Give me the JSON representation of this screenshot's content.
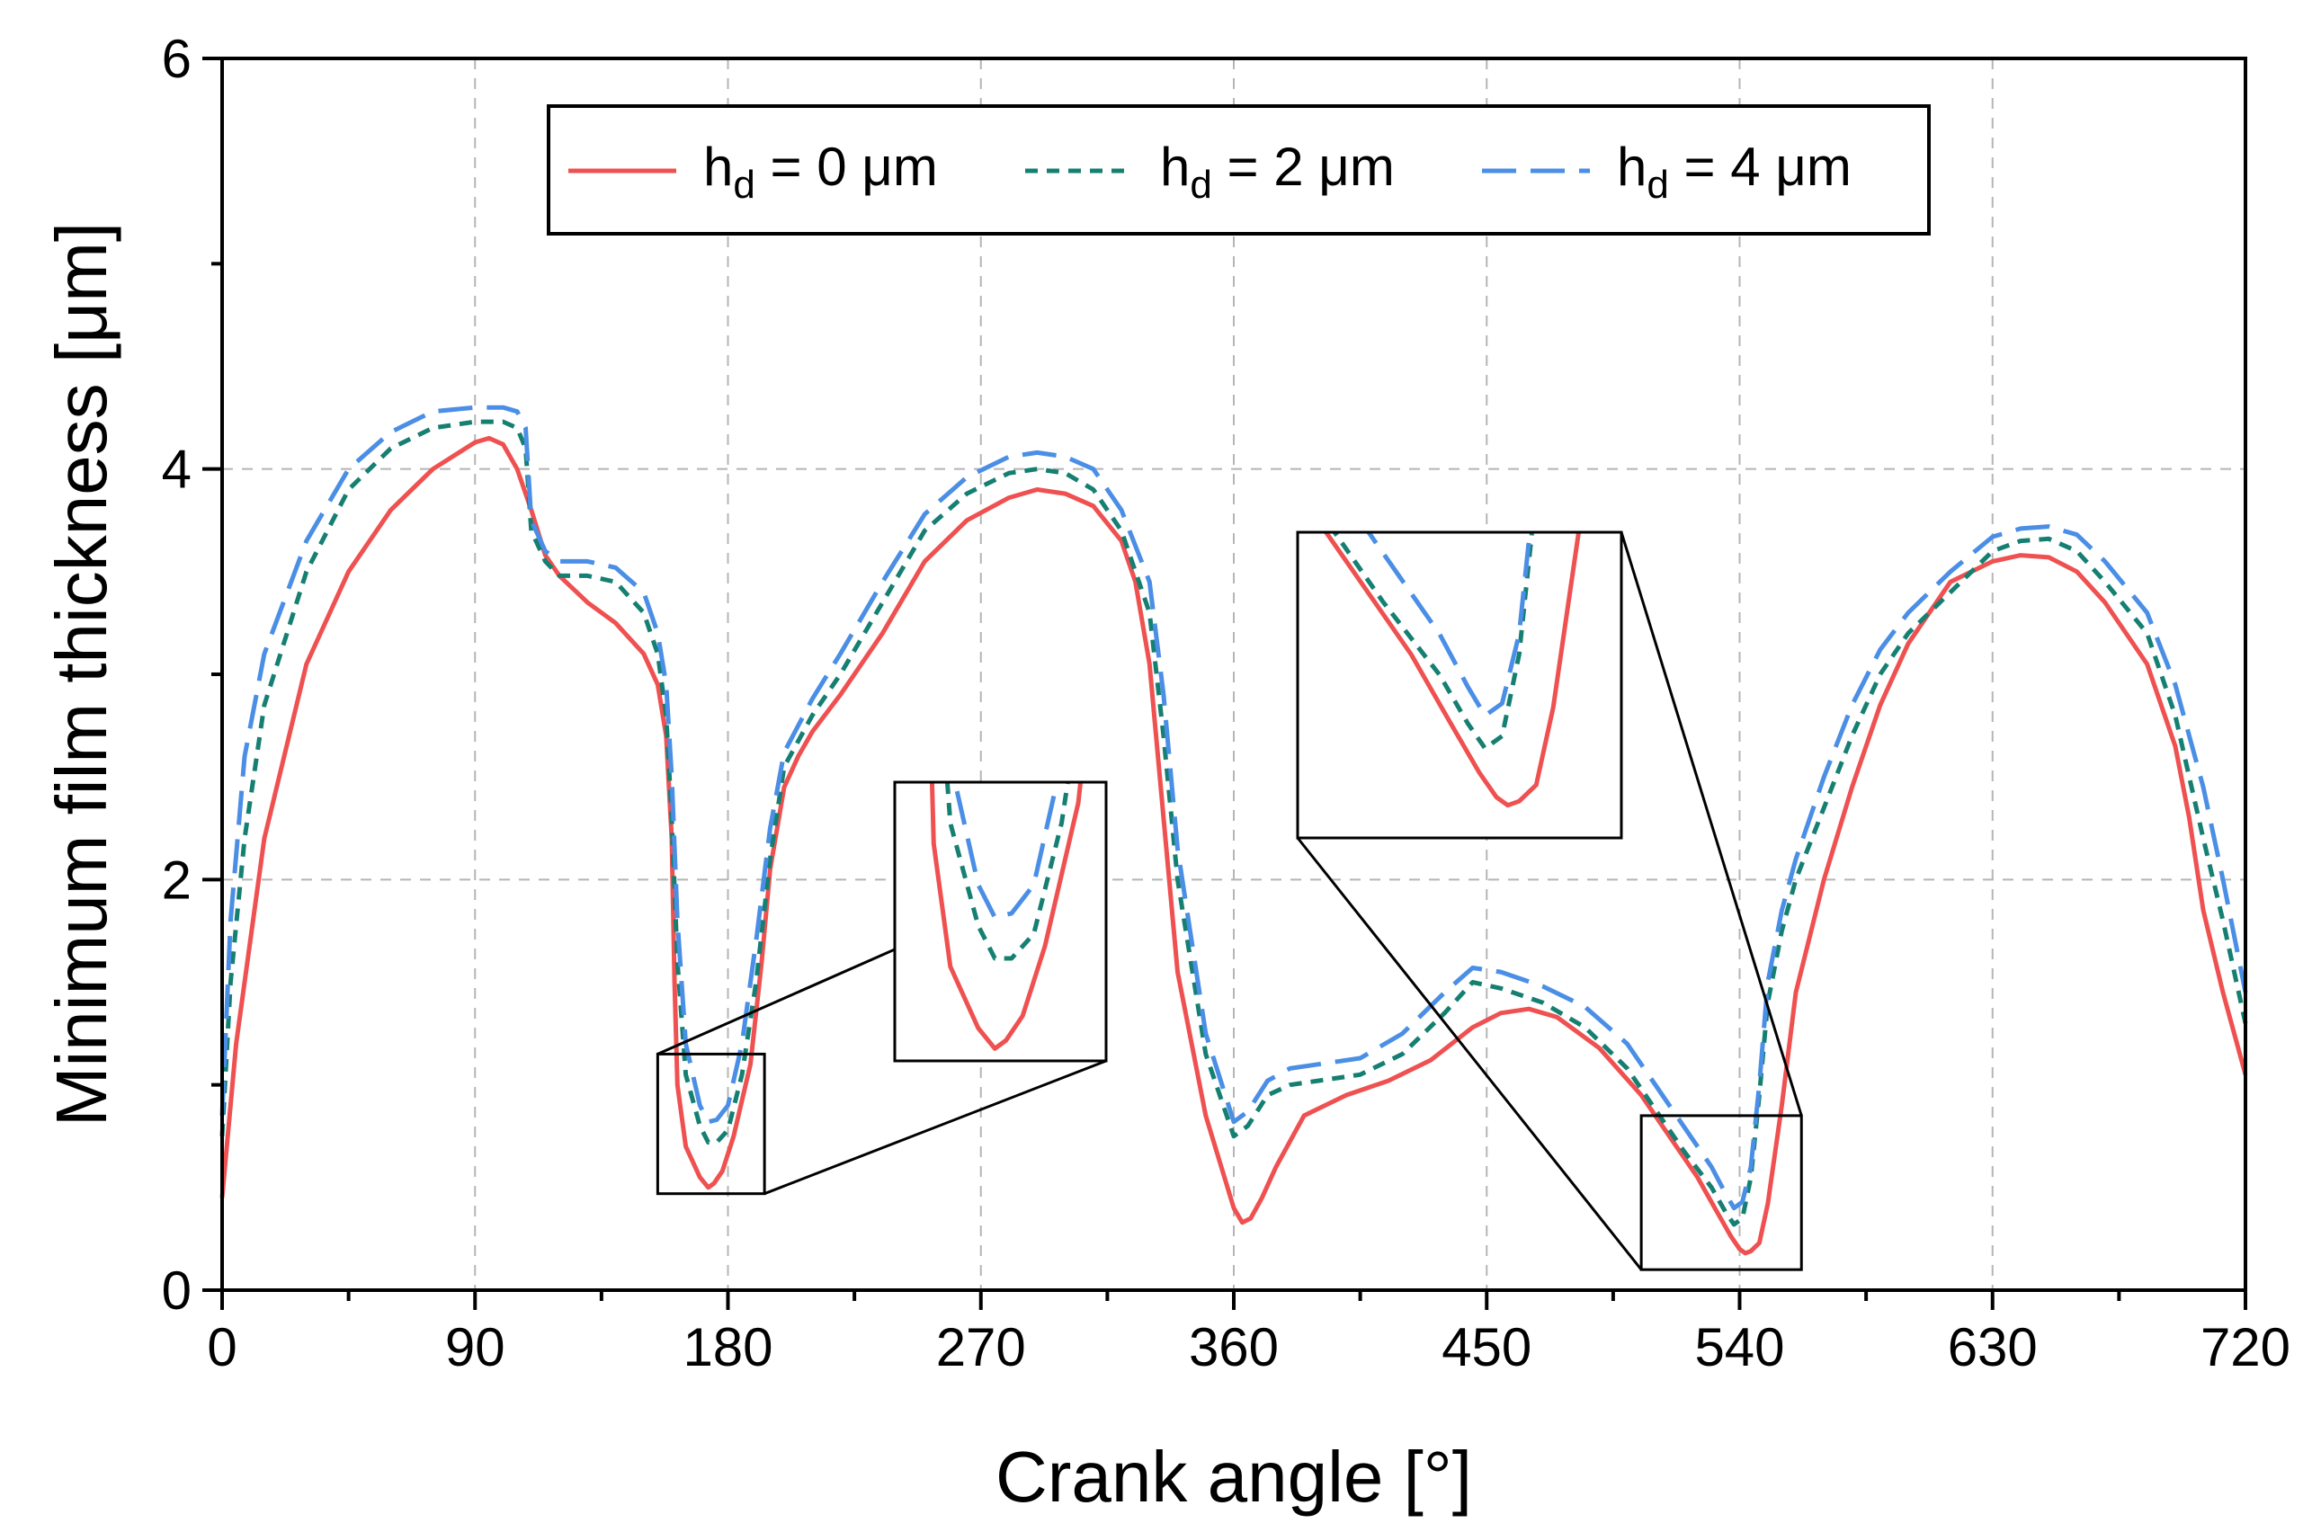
{
  "chart_data": {
    "type": "line",
    "title": "",
    "xlabel": "Crank angle [°]",
    "ylabel": "Minimum film thickness [μm]",
    "xlim": [
      0,
      720
    ],
    "ylim": [
      0,
      6
    ],
    "xticks": [
      0,
      90,
      180,
      270,
      360,
      450,
      540,
      630,
      720
    ],
    "yticks": [
      0,
      2,
      4,
      6
    ],
    "grid": true,
    "legend_position": "top-center",
    "series": [
      {
        "name": "hd = 0 μm",
        "name_main": "h",
        "name_sub": "d",
        "name_rest": " = 0 μm",
        "color": "#ef5050",
        "style": "solid",
        "x": [
          0,
          5,
          15,
          30,
          45,
          60,
          75,
          90,
          95,
          100,
          105,
          110,
          115,
          120,
          130,
          140,
          150,
          155,
          158,
          160,
          161,
          162,
          165,
          170,
          173,
          175,
          178,
          182,
          188,
          192,
          195,
          200,
          205,
          210,
          220,
          235,
          250,
          265,
          280,
          290,
          300,
          310,
          320,
          325,
          330,
          335,
          340,
          350,
          360,
          363,
          366,
          370,
          375,
          385,
          400,
          415,
          430,
          445,
          455,
          465,
          475,
          490,
          505,
          515,
          525,
          532,
          537,
          540,
          542,
          544,
          547,
          550,
          555,
          560,
          570,
          580,
          590,
          600,
          615,
          630,
          640,
          650,
          660,
          670,
          685,
          695,
          700,
          705,
          712,
          720
        ],
        "y": [
          0.45,
          1.2,
          2.2,
          3.05,
          3.5,
          3.8,
          4.0,
          4.13,
          4.15,
          4.12,
          4.0,
          3.8,
          3.58,
          3.48,
          3.35,
          3.25,
          3.1,
          2.95,
          2.7,
          2.2,
          1.5,
          1.0,
          0.7,
          0.55,
          0.5,
          0.52,
          0.58,
          0.75,
          1.1,
          1.6,
          2.05,
          2.45,
          2.6,
          2.72,
          2.9,
          3.2,
          3.55,
          3.75,
          3.86,
          3.9,
          3.88,
          3.82,
          3.65,
          3.45,
          3.05,
          2.3,
          1.55,
          0.85,
          0.4,
          0.33,
          0.35,
          0.45,
          0.6,
          0.85,
          0.95,
          1.02,
          1.12,
          1.28,
          1.35,
          1.37,
          1.33,
          1.18,
          0.95,
          0.75,
          0.55,
          0.38,
          0.26,
          0.2,
          0.18,
          0.19,
          0.23,
          0.42,
          0.9,
          1.45,
          2.0,
          2.45,
          2.85,
          3.15,
          3.45,
          3.55,
          3.58,
          3.57,
          3.5,
          3.35,
          3.05,
          2.65,
          2.3,
          1.85,
          1.45,
          1.05
        ]
      },
      {
        "name": "hd = 2 μm",
        "name_main": "h",
        "name_sub": "d",
        "name_rest": " = 2 μm",
        "color": "#157f72",
        "style": "short-dash",
        "x": [
          0,
          3,
          8,
          15,
          30,
          45,
          60,
          75,
          90,
          100,
          105,
          108,
          110,
          115,
          120,
          130,
          140,
          150,
          155,
          158,
          160,
          162,
          165,
          170,
          173,
          176,
          180,
          185,
          190,
          195,
          200,
          210,
          220,
          235,
          250,
          265,
          280,
          290,
          300,
          310,
          320,
          330,
          335,
          340,
          350,
          360,
          365,
          372,
          380,
          390,
          405,
          420,
          435,
          445,
          455,
          470,
          485,
          500,
          510,
          520,
          530,
          535,
          538,
          541,
          544,
          547,
          550,
          555,
          560,
          570,
          580,
          590,
          600,
          615,
          630,
          640,
          650,
          660,
          670,
          685,
          695,
          705,
          712,
          720
        ],
        "y": [
          0.75,
          1.5,
          2.2,
          2.85,
          3.5,
          3.9,
          4.1,
          4.2,
          4.23,
          4.23,
          4.2,
          4.1,
          3.7,
          3.55,
          3.48,
          3.48,
          3.45,
          3.3,
          3.1,
          2.8,
          2.3,
          1.6,
          1.05,
          0.8,
          0.72,
          0.72,
          0.78,
          1.05,
          1.5,
          2.1,
          2.55,
          2.8,
          3.0,
          3.35,
          3.7,
          3.88,
          3.98,
          4.0,
          3.98,
          3.9,
          3.7,
          3.3,
          2.7,
          2.0,
          1.15,
          0.75,
          0.8,
          0.95,
          1.0,
          1.02,
          1.05,
          1.15,
          1.35,
          1.5,
          1.47,
          1.4,
          1.28,
          1.08,
          0.88,
          0.68,
          0.5,
          0.38,
          0.32,
          0.35,
          0.55,
          0.95,
          1.4,
          1.75,
          2.0,
          2.35,
          2.7,
          3.0,
          3.2,
          3.4,
          3.6,
          3.65,
          3.66,
          3.6,
          3.45,
          3.2,
          2.8,
          2.2,
          1.8,
          1.3
        ]
      },
      {
        "name": "hd = 4 μm",
        "name_main": "h",
        "name_sub": "d",
        "name_rest": " = 4 μm",
        "color": "#4a8ee6",
        "style": "long-dash",
        "x": [
          0,
          3,
          8,
          15,
          30,
          45,
          60,
          75,
          90,
          100,
          105,
          108,
          110,
          115,
          120,
          130,
          140,
          150,
          155,
          158,
          160,
          162,
          165,
          170,
          173,
          176,
          180,
          185,
          190,
          195,
          200,
          210,
          220,
          235,
          250,
          265,
          280,
          290,
          300,
          310,
          320,
          330,
          335,
          340,
          350,
          360,
          365,
          372,
          380,
          390,
          405,
          420,
          435,
          445,
          455,
          470,
          485,
          500,
          510,
          520,
          530,
          535,
          538,
          541,
          544,
          547,
          550,
          555,
          560,
          570,
          580,
          590,
          600,
          615,
          630,
          640,
          650,
          660,
          670,
          685,
          695,
          705,
          712,
          720
        ],
        "y": [
          0.85,
          1.8,
          2.6,
          3.1,
          3.65,
          4.0,
          4.18,
          4.28,
          4.3,
          4.3,
          4.28,
          4.2,
          3.75,
          3.6,
          3.55,
          3.55,
          3.52,
          3.4,
          3.2,
          2.95,
          2.5,
          1.8,
          1.2,
          0.9,
          0.82,
          0.83,
          0.9,
          1.2,
          1.7,
          2.25,
          2.62,
          2.88,
          3.1,
          3.45,
          3.78,
          3.96,
          4.06,
          4.08,
          4.06,
          4.0,
          3.8,
          3.45,
          2.9,
          2.15,
          1.25,
          0.82,
          0.87,
          1.02,
          1.08,
          1.1,
          1.13,
          1.25,
          1.45,
          1.57,
          1.55,
          1.48,
          1.38,
          1.2,
          1.0,
          0.8,
          0.6,
          0.47,
          0.4,
          0.43,
          0.6,
          1.0,
          1.5,
          1.85,
          2.1,
          2.5,
          2.85,
          3.12,
          3.3,
          3.5,
          3.67,
          3.71,
          3.72,
          3.68,
          3.55,
          3.3,
          2.95,
          2.45,
          2.0,
          1.45
        ]
      }
    ],
    "insets": [
      {
        "source_xlim": [
          155,
          193
        ],
        "source_ylim": [
          0.47,
          1.15
        ]
      },
      {
        "source_xlim": [
          505,
          562
        ],
        "source_ylim": [
          0.1,
          0.85
        ]
      }
    ]
  }
}
